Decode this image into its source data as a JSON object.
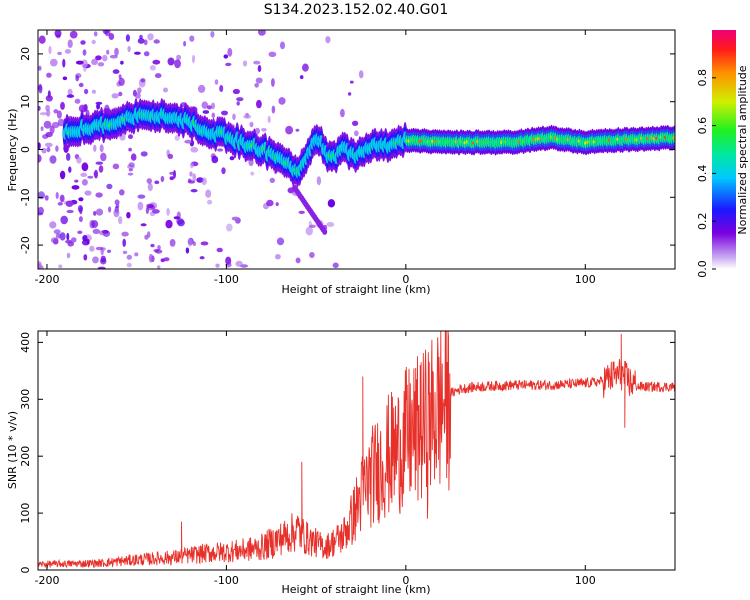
{
  "title": "S134.2023.152.02.40.G01",
  "chart_data": [
    {
      "type": "heatmap",
      "name": "spectrogram",
      "xlabel": "Height of straight line (km)",
      "ylabel": "Frequency (Hz)",
      "xlim": [
        -205,
        150
      ],
      "ylim": [
        -25,
        25
      ],
      "xticks": [
        -200,
        -100,
        0,
        100
      ],
      "yticks": [
        -20,
        -10,
        0,
        10,
        20
      ],
      "ridge": {
        "x": [
          -190,
          -170,
          -150,
          -130,
          -110,
          -95,
          -80,
          -70,
          -60,
          -50,
          -42,
          -35,
          -28,
          -20,
          -10,
          0,
          20,
          40,
          60,
          80,
          100,
          120,
          150
        ],
        "y": [
          4,
          5,
          7,
          7,
          4,
          2,
          0,
          -2,
          -5,
          3,
          -2,
          0,
          -1,
          1,
          1,
          2,
          1.5,
          1.5,
          1.5,
          2.5,
          1.5,
          2,
          2.5
        ]
      },
      "colorbar": {
        "label": "Normalized spectral amplitude",
        "range": [
          0.0,
          1.0
        ],
        "ticks": [
          0.0,
          0.2,
          0.4,
          0.6,
          0.8
        ],
        "tick_labels": [
          "0.0",
          "0.2",
          "0.4",
          "0.6",
          "0.8"
        ]
      }
    },
    {
      "type": "line",
      "name": "snr",
      "xlabel": "Height of straight line (km)",
      "ylabel": "SNR (10 * v/v)",
      "xlim": [
        -205,
        150
      ],
      "ylim": [
        0,
        420
      ],
      "xticks": [
        -200,
        -100,
        0,
        100
      ],
      "yticks": [
        0,
        100,
        200,
        300,
        400
      ],
      "color": "#e8302a",
      "envelope": {
        "x": [
          -205,
          -170,
          -150,
          -130,
          -110,
          -100,
          -90,
          -80,
          -70,
          -60,
          -55,
          -45,
          -35,
          -30,
          -25,
          -20,
          -15,
          -10,
          -5,
          0,
          5,
          10,
          15,
          20,
          25,
          30,
          40,
          60,
          80,
          100,
          110,
          115,
          120,
          125,
          130,
          150
        ],
        "y": [
          10,
          12,
          18,
          22,
          30,
          32,
          35,
          40,
          55,
          70,
          55,
          40,
          60,
          90,
          130,
          160,
          180,
          200,
          210,
          230,
          240,
          250,
          270,
          295,
          310,
          318,
          322,
          325,
          325,
          328,
          332,
          340,
          345,
          330,
          322,
          322
        ]
      },
      "spikes": [
        {
          "x": -125,
          "y": 85
        },
        {
          "x": -58,
          "y": 190
        },
        {
          "x": -24,
          "y": 340
        },
        {
          "x": 8,
          "y": 360
        },
        {
          "x": 12,
          "y": 90
        },
        {
          "x": 120,
          "y": 415
        },
        {
          "x": 122,
          "y": 250
        }
      ]
    }
  ]
}
